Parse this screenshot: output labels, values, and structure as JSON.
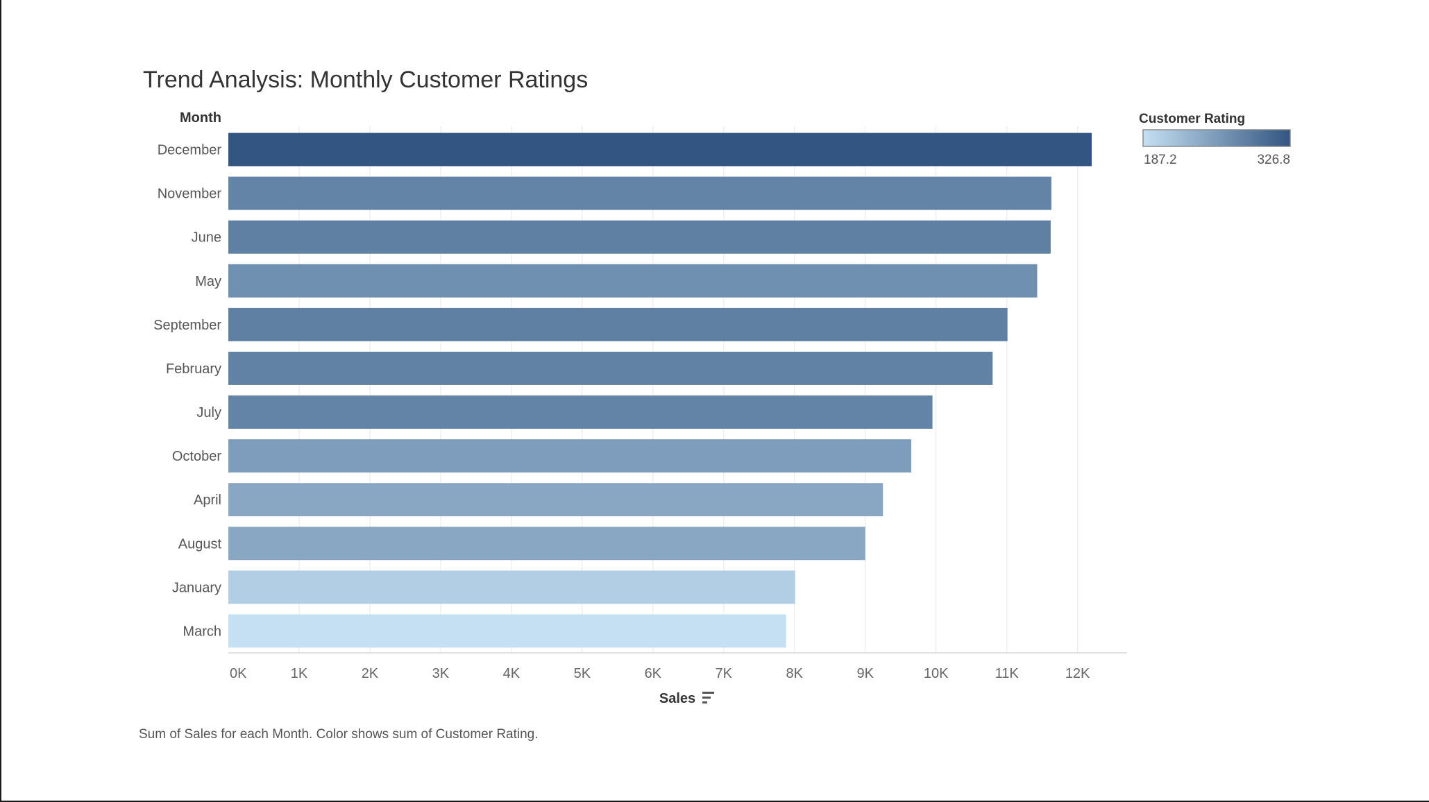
{
  "chart_data": {
    "type": "bar",
    "orientation": "horizontal",
    "title": "Trend Analysis: Monthly Customer Ratings",
    "ylabel": "Month",
    "xlabel": "Sales",
    "categories": [
      "December",
      "November",
      "June",
      "May",
      "September",
      "February",
      "July",
      "October",
      "April",
      "August",
      "January",
      "March"
    ],
    "values": [
      12200,
      11630,
      11620,
      11430,
      11010,
      10800,
      9950,
      9650,
      9250,
      9000,
      8010,
      7880
    ],
    "color_values": [
      326.8,
      280,
      285,
      268,
      285,
      282,
      280,
      255,
      245,
      245,
      205,
      187.2
    ],
    "xlim": [
      0,
      12700
    ],
    "xticks": [
      0,
      1000,
      2000,
      3000,
      4000,
      5000,
      6000,
      7000,
      8000,
      9000,
      10000,
      11000,
      12000
    ],
    "xtick_labels": [
      "0K",
      "1K",
      "2K",
      "3K",
      "4K",
      "5K",
      "6K",
      "7K",
      "8K",
      "9K",
      "10K",
      "11K",
      "12K"
    ],
    "legend": {
      "title": "Customer Rating",
      "min_label": "187.2",
      "max_label": "326.8",
      "min": 187.2,
      "max": 326.8,
      "color_low": "#c5e0f2",
      "color_high": "#335581",
      "placement": "top-right"
    },
    "grid": true,
    "caption": "Sum of Sales for each Month.  Color shows sum of Customer Rating."
  }
}
